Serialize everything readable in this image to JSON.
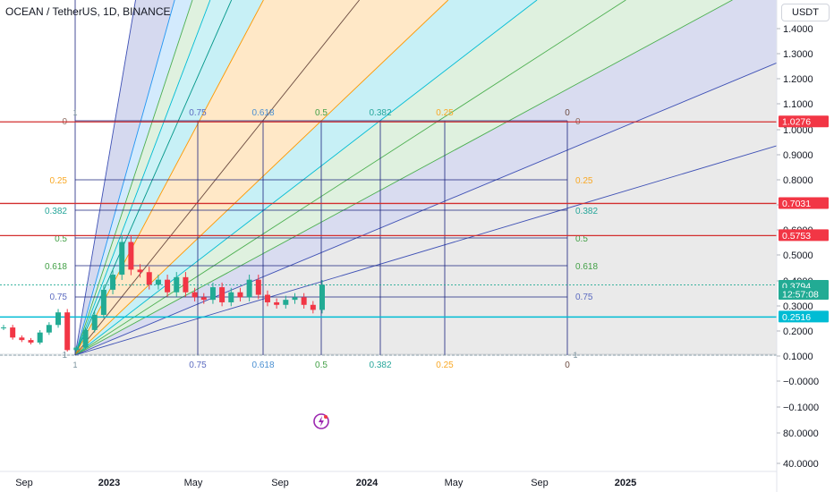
{
  "header": {
    "title": "OCEAN / TetherUS, 1D, BINANCE",
    "unit": "USDT"
  },
  "price_axis": {
    "labels": [
      "1.4000",
      "1.3000",
      "1.2000",
      "1.1000",
      "1.0000",
      "0.9000",
      "0.8000",
      "0.7000",
      "0.6000",
      "0.5000",
      "0.4000",
      "0.3000",
      "0.2000",
      "0.1000",
      "−0.0000",
      "−0.1000",
      "80.0000",
      "40.0000"
    ]
  },
  "time_axis": {
    "labels": [
      "Sep",
      "2023",
      "May",
      "Sep",
      "2024",
      "May",
      "Sep",
      "2025"
    ]
  },
  "badges": [
    {
      "text": "1.0276",
      "color": "#f23645"
    },
    {
      "text": "0.7031",
      "color": "#f23645"
    },
    {
      "text": "0.5753",
      "color": "#f23645"
    },
    {
      "text": "0.3794",
      "color": "#22ab94"
    },
    {
      "text": "12:57:08",
      "color": "#22ab94"
    },
    {
      "text": "0.2516",
      "color": "#00bcd4"
    }
  ],
  "fib_top_labels": [
    "0.75",
    "0.618",
    "0.5",
    "0.382",
    "0.25",
    "0"
  ],
  "fib_bottom_labels": [
    "0.75",
    "0.618",
    "0.5",
    "0.382",
    "0.25",
    "0"
  ],
  "fib_left_labels": [
    "0",
    "0.25",
    "0.382",
    "0.5",
    "0.618",
    "0.75",
    "1"
  ],
  "fib_right_labels": [
    "0",
    "0.25",
    "0.382",
    "0.5",
    "0.618",
    "0.75"
  ],
  "corner_marks": [
    "1",
    "1",
    "1"
  ],
  "colors": {
    "up": "#22ab94",
    "down": "#f23645",
    "level": "#d32f2f",
    "support": "#00bcd4"
  },
  "chart_data": {
    "type": "candlestick",
    "symbol": "OCEAN / TetherUS",
    "interval": "1D",
    "exchange": "BINANCE",
    "last_price": 0.3794,
    "horizontal_levels": [
      1.0276,
      0.7031,
      0.5753,
      0.2516
    ],
    "gann_fan_levels": [
      0,
      0.25,
      0.382,
      0.5,
      0.618,
      0.75,
      1
    ],
    "approx_closes": [
      0.21,
      0.17,
      0.16,
      0.15,
      0.19,
      0.22,
      0.27,
      0.12,
      0.13,
      0.2,
      0.26,
      0.36,
      0.42,
      0.55,
      0.44,
      0.43,
      0.38,
      0.4,
      0.35,
      0.41,
      0.35,
      0.33,
      0.32,
      0.37,
      0.31,
      0.35,
      0.33,
      0.4,
      0.34,
      0.31,
      0.3,
      0.32,
      0.33,
      0.3,
      0.28,
      0.38
    ]
  }
}
